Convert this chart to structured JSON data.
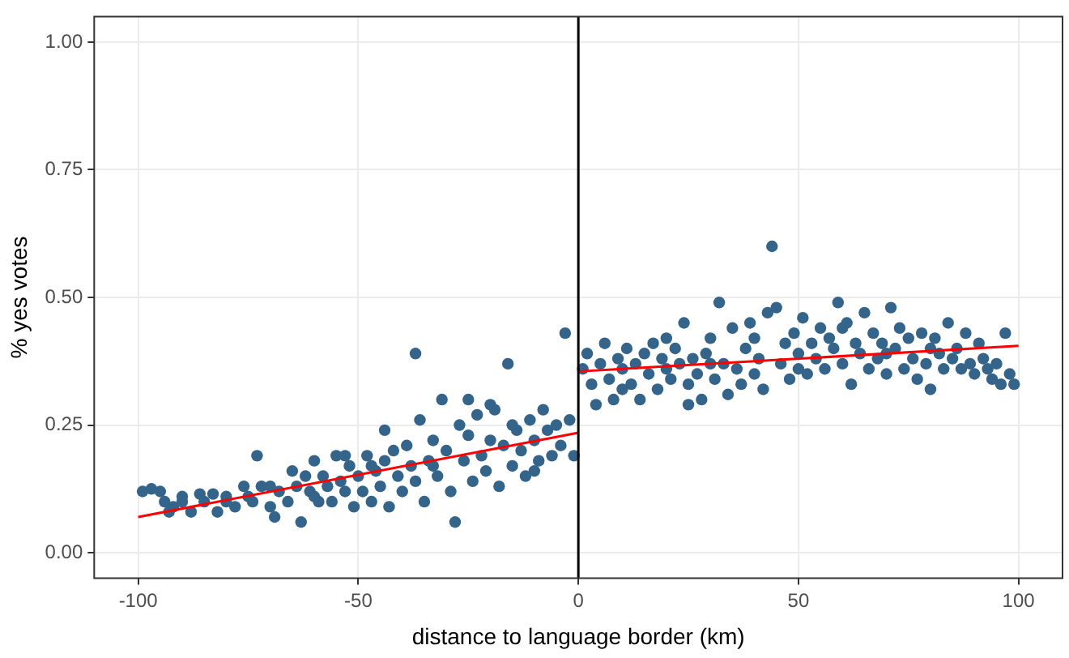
{
  "chart_data": {
    "type": "scatter",
    "xlabel": "distance to language border (km)",
    "ylabel": "% yes votes",
    "xlim": [
      -110,
      110
    ],
    "ylim": [
      -0.05,
      1.05
    ],
    "xticks": [
      -100,
      -50,
      0,
      50,
      100
    ],
    "yticks": [
      {
        "value": 0,
        "label": "0.00"
      },
      {
        "value": 0.25,
        "label": "0.25"
      },
      {
        "value": 0.5,
        "label": "0.50"
      },
      {
        "value": 0.75,
        "label": "0.75"
      },
      {
        "value": 1,
        "label": "1.00"
      }
    ],
    "grid": true,
    "legend": false,
    "marker": "circle",
    "ref_lines": [
      {
        "axis": "x",
        "value": 0,
        "color": "#000000"
      }
    ],
    "series": [
      {
        "color": "#35648a",
        "x": [
          -99,
          -97,
          -95,
          -94,
          -93,
          -92,
          -90,
          -88,
          -86,
          -85,
          -83,
          -82,
          -80,
          -78,
          -76,
          -75,
          -74,
          -73,
          -72,
          -70,
          -69,
          -68,
          -66,
          -65,
          -64,
          -63,
          -62,
          -61,
          -60,
          -59,
          -58,
          -57,
          -56,
          -55,
          -54,
          -53,
          -52,
          -51,
          -50,
          -49,
          -48,
          -47,
          -46,
          -45,
          -44,
          -43,
          -42,
          -41,
          -40,
          -39,
          -38,
          -37,
          -36,
          -35,
          -34,
          -33,
          -32,
          -31,
          -30,
          -29,
          -28,
          -27,
          -26,
          -25,
          -24,
          -23,
          -22,
          -21,
          -20,
          -19,
          -18,
          -17,
          -16,
          -15,
          -14,
          -13,
          -12,
          -11,
          -10,
          -9,
          -8,
          -7,
          -6,
          -5,
          -4,
          -3,
          -2,
          -1,
          -37,
          -44,
          -60,
          -70,
          -80,
          -90,
          -25,
          -20,
          -15,
          -10,
          -33,
          -47,
          -53,
          1,
          2,
          3,
          4,
          5,
          6,
          7,
          8,
          9,
          10,
          11,
          12,
          13,
          14,
          15,
          16,
          17,
          18,
          19,
          20,
          21,
          22,
          23,
          24,
          25,
          26,
          27,
          28,
          29,
          30,
          31,
          32,
          33,
          34,
          35,
          36,
          37,
          38,
          39,
          40,
          41,
          42,
          43,
          44,
          45,
          46,
          47,
          48,
          49,
          50,
          51,
          52,
          53,
          54,
          55,
          56,
          57,
          58,
          59,
          60,
          61,
          62,
          63,
          64,
          65,
          66,
          67,
          68,
          69,
          70,
          71,
          72,
          73,
          74,
          75,
          76,
          77,
          78,
          79,
          80,
          81,
          82,
          83,
          84,
          85,
          86,
          87,
          88,
          89,
          90,
          91,
          92,
          93,
          94,
          95,
          96,
          97,
          98,
          99,
          20,
          30,
          40,
          50,
          60,
          70,
          80,
          10,
          25
        ],
        "values": [
          0.12,
          0.125,
          0.12,
          0.1,
          0.08,
          0.09,
          0.1,
          0.08,
          0.115,
          0.1,
          0.115,
          0.08,
          0.1,
          0.09,
          0.13,
          0.11,
          0.1,
          0.19,
          0.13,
          0.09,
          0.07,
          0.12,
          0.1,
          0.16,
          0.13,
          0.06,
          0.15,
          0.12,
          0.18,
          0.1,
          0.15,
          0.13,
          0.1,
          0.19,
          0.14,
          0.12,
          0.17,
          0.09,
          0.15,
          0.12,
          0.19,
          0.1,
          0.16,
          0.13,
          0.18,
          0.09,
          0.2,
          0.15,
          0.12,
          0.21,
          0.17,
          0.14,
          0.26,
          0.1,
          0.18,
          0.22,
          0.15,
          0.3,
          0.2,
          0.12,
          0.06,
          0.25,
          0.18,
          0.23,
          0.14,
          0.27,
          0.19,
          0.16,
          0.22,
          0.28,
          0.13,
          0.21,
          0.37,
          0.17,
          0.24,
          0.2,
          0.15,
          0.26,
          0.22,
          0.18,
          0.28,
          0.24,
          0.19,
          0.25,
          0.21,
          0.43,
          0.26,
          0.19,
          0.39,
          0.24,
          0.11,
          0.13,
          0.11,
          0.11,
          0.3,
          0.29,
          0.25,
          0.16,
          0.17,
          0.17,
          0.19,
          0.36,
          0.39,
          0.33,
          0.29,
          0.37,
          0.41,
          0.34,
          0.3,
          0.38,
          0.36,
          0.4,
          0.33,
          0.37,
          0.3,
          0.39,
          0.35,
          0.41,
          0.32,
          0.38,
          0.36,
          0.34,
          0.4,
          0.37,
          0.45,
          0.33,
          0.38,
          0.35,
          0.3,
          0.39,
          0.42,
          0.34,
          0.49,
          0.37,
          0.31,
          0.44,
          0.36,
          0.33,
          0.4,
          0.45,
          0.35,
          0.38,
          0.32,
          0.47,
          0.6,
          0.48,
          0.37,
          0.41,
          0.34,
          0.43,
          0.39,
          0.46,
          0.35,
          0.41,
          0.38,
          0.44,
          0.36,
          0.42,
          0.4,
          0.49,
          0.37,
          0.45,
          0.33,
          0.41,
          0.39,
          0.47,
          0.36,
          0.43,
          0.38,
          0.41,
          0.35,
          0.48,
          0.4,
          0.44,
          0.36,
          0.42,
          0.38,
          0.34,
          0.43,
          0.37,
          0.32,
          0.42,
          0.39,
          0.36,
          0.45,
          0.38,
          0.4,
          0.36,
          0.43,
          0.37,
          0.35,
          0.41,
          0.38,
          0.36,
          0.34,
          0.37,
          0.33,
          0.43,
          0.35,
          0.33,
          0.42,
          0.37,
          0.42,
          0.36,
          0.44,
          0.39,
          0.4,
          0.32,
          0.29
        ]
      },
      {
        "type": "line",
        "color": "#ff0000",
        "marker": "none",
        "x": [
          -100,
          0
        ],
        "values": [
          0.07,
          0.235
        ]
      },
      {
        "type": "line",
        "color": "#ff0000",
        "marker": "none",
        "x": [
          0,
          100
        ],
        "values": [
          0.355,
          0.405
        ]
      }
    ]
  }
}
